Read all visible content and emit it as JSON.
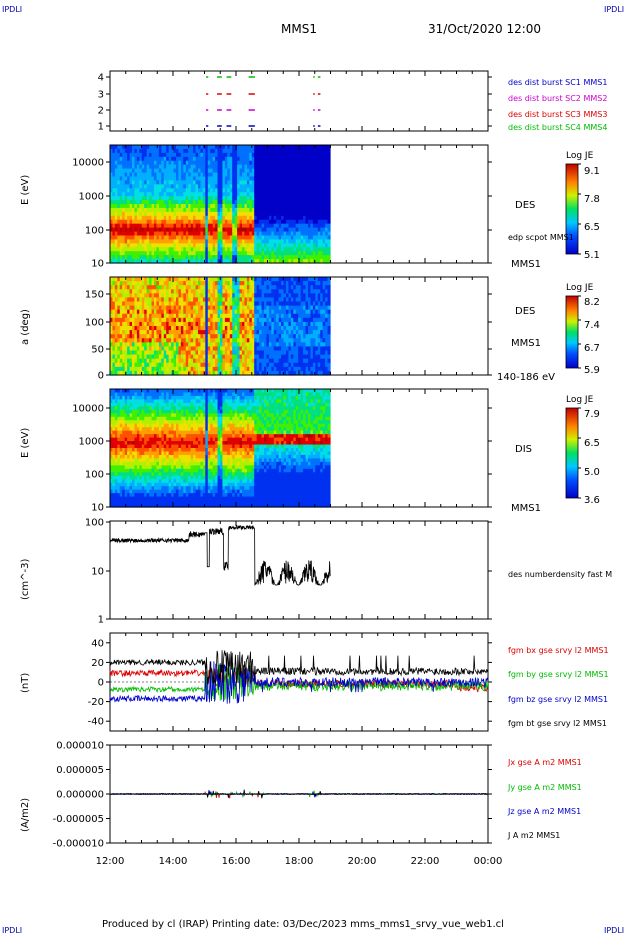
{
  "header": {
    "logo_left": "IPDLI",
    "logo_right": "IPDLI",
    "title": "MMS1",
    "datetime": "31/Oct/2020 12:00"
  },
  "footer": {
    "logo_left": "IPDLI",
    "logo_right": "IPDLI",
    "text": "Produced by cl (IRAP)   Printing date: 03/Dec/2023   mms_mms1_srvy_vue_web1.cl"
  },
  "colors": {
    "blue": "#0000cc",
    "magenta": "#cc00cc",
    "red": "#dd0000",
    "green": "#00bb00",
    "black": "#000000"
  },
  "x_axis": {
    "ticks": [
      "12:00",
      "14:00",
      "16:00",
      "18:00",
      "20:00",
      "22:00",
      "00:00"
    ],
    "range_hours": [
      12,
      24
    ]
  },
  "chart_data": [
    {
      "id": "burst",
      "type": "scatter",
      "yticks": [
        "4",
        "3",
        "2",
        "1"
      ],
      "legend": [
        {
          "label": "des dist burst SC1 MMS1",
          "color": "#0000cc"
        },
        {
          "label": "des dist burst SC2 MMS2",
          "color": "#cc00cc"
        },
        {
          "label": "des dist burst SC3 MMS3",
          "color": "#dd0000"
        },
        {
          "label": "des dist burst SC4 MMS4",
          "color": "#00bb00"
        }
      ],
      "intervals_hours": [
        [
          15.05,
          15.12
        ],
        [
          15.4,
          15.55
        ],
        [
          15.7,
          15.85
        ],
        [
          16.4,
          16.6
        ],
        [
          18.45,
          18.5
        ],
        [
          18.6,
          18.68
        ]
      ]
    },
    {
      "id": "des-energy",
      "type": "heatmap",
      "ylabel": "E (eV)",
      "yticks": [
        "10000",
        "1000",
        "100",
        "10"
      ],
      "right_label": "DES",
      "right_sublabel": "edp scpot MMS1",
      "bottom_right_label": "MMS1",
      "colorbar": {
        "title": "Log JE",
        "ticks": [
          "9.1",
          "7.8",
          "6.5",
          "5.1"
        ]
      }
    },
    {
      "id": "des-pitch",
      "type": "heatmap",
      "ylabel": "a (deg)",
      "yticks": [
        "150",
        "100",
        "50",
        "0"
      ],
      "right_label": "DES",
      "right_sublabel": "MMS1",
      "bottom_right_label": "140-186 eV",
      "colorbar": {
        "title": "Log JE",
        "ticks": [
          "8.2",
          "7.4",
          "6.7",
          "5.9"
        ]
      }
    },
    {
      "id": "dis-energy",
      "type": "heatmap",
      "ylabel": "E (eV)",
      "yticks": [
        "10000",
        "1000",
        "100",
        "10"
      ],
      "right_label": "DIS",
      "bottom_right_label": "MMS1",
      "colorbar": {
        "title": "Log JE",
        "ticks": [
          "7.9",
          "6.5",
          "5.0",
          "3.6"
        ]
      }
    },
    {
      "id": "density",
      "type": "line",
      "ylabel": "(cm^-3)",
      "yticks": [
        "100",
        "10",
        "1"
      ],
      "legend": [
        {
          "label": "des numberdensity fast M",
          "color": "#000000"
        }
      ],
      "ylim": [
        1,
        100
      ],
      "log": true
    },
    {
      "id": "magnetic-field",
      "type": "line",
      "ylabel": "(nT)",
      "yticks": [
        "40",
        "20",
        "0",
        "-20",
        "-40"
      ],
      "ylim": [
        -50,
        50
      ],
      "legend": [
        {
          "label": "fgm bx gse srvy l2 MMS1",
          "color": "#dd0000"
        },
        {
          "label": "fgm by gse srvy l2 MMS1",
          "color": "#00bb00"
        },
        {
          "label": "fgm bz gse srvy l2 MMS1",
          "color": "#0000cc"
        },
        {
          "label": "fgm bt gse srvy l2 MMS1",
          "color": "#000000"
        }
      ]
    },
    {
      "id": "current-density",
      "type": "line",
      "ylabel": "(A/m2)",
      "yticks": [
        "0.000010",
        "0.000005",
        "0.000000",
        "-0.000005",
        "-0.000010"
      ],
      "ylim": [
        -1e-05,
        1e-05
      ],
      "legend": [
        {
          "label": "Jx gse A m2 MMS1",
          "color": "#dd0000"
        },
        {
          "label": "Jy gse A m2 MMS1",
          "color": "#00bb00"
        },
        {
          "label": "Jz gse A m2 MMS1",
          "color": "#0000cc"
        },
        {
          "label": "J A m2 MMS1",
          "color": "#000000"
        }
      ]
    }
  ]
}
